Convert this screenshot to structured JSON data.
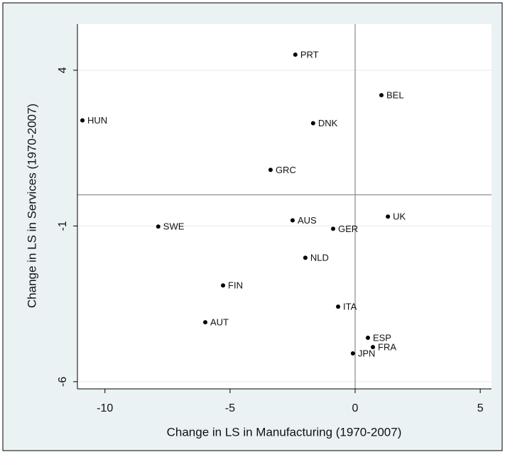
{
  "chart_data": {
    "type": "scatter",
    "xlabel": "Change in LS in Manufacturing (1970-2007)",
    "ylabel": "Change in LS in Services (1970-2007)",
    "labels": [
      "PRT",
      "BEL",
      "HUN",
      "DNK",
      "GRC",
      "UK",
      "AUS",
      "SWE",
      "GER",
      "NLD",
      "FIN",
      "ITA",
      "AUT",
      "ESP",
      "FRA",
      "JPN"
    ],
    "x": [
      -2.39,
      1.05,
      -10.9,
      -1.68,
      -3.38,
      1.31,
      -2.5,
      -7.87,
      -0.88,
      -1.99,
      -5.28,
      -0.68,
      -5.99,
      0.51,
      0.71,
      -0.09
    ],
    "values": [
      4.5,
      3.2,
      2.39,
      2.3,
      0.8,
      -0.7,
      -0.82,
      -1.02,
      -1.09,
      -2.02,
      -2.91,
      -3.59,
      -4.09,
      -4.59,
      -4.89,
      -5.09
    ],
    "color": "#000000",
    "xlim": [
      -11.1,
      5.45
    ],
    "ylim": [
      -6.23,
      5.48
    ],
    "xticks": [
      -10,
      -5,
      0,
      5
    ],
    "yticks": [
      -6,
      -1,
      4
    ],
    "xline": 0,
    "yline": 0,
    "grid": true
  }
}
